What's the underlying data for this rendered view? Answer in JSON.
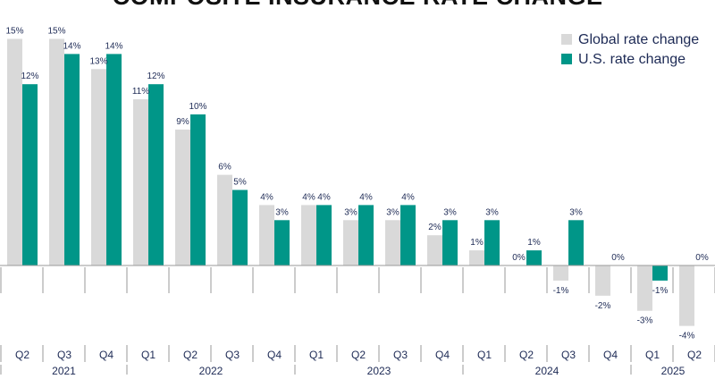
{
  "colors": {
    "global": "#d9d9d9",
    "us": "#009688",
    "text": "#1d2a55",
    "axis": "#9a9a9a"
  },
  "chart_data": {
    "type": "bar",
    "title": "COMPOSITE INSURANCE RATE CHANGE",
    "xlabel": "",
    "ylabel": "",
    "ylim": [
      -5,
      16
    ],
    "grid": false,
    "legend_position": "top-right",
    "categories": [
      "Q2",
      "Q3",
      "Q4",
      "Q1",
      "Q2",
      "Q3",
      "Q4",
      "Q1",
      "Q2",
      "Q3",
      "Q4",
      "Q1",
      "Q2",
      "Q3",
      "Q4",
      "Q1",
      "Q2"
    ],
    "years": [
      {
        "label": "2021",
        "start": 0,
        "count": 3
      },
      {
        "label": "2022",
        "start": 3,
        "count": 4
      },
      {
        "label": "2023",
        "start": 7,
        "count": 4
      },
      {
        "label": "2024",
        "start": 11,
        "count": 4
      },
      {
        "label": "2025",
        "start": 15,
        "count": 2
      }
    ],
    "series": [
      {
        "name": "Global rate change",
        "key": "global",
        "values": [
          15,
          15,
          13,
          11,
          9,
          6,
          4,
          4,
          3,
          3,
          2,
          1,
          0,
          -1,
          -2,
          -3,
          -4
        ],
        "labels": [
          "15%",
          "15%",
          "13%",
          "11%",
          "9%",
          "6%",
          "4%",
          "4%",
          "3%",
          "3%",
          "2%",
          "1%",
          "0%",
          "-1%",
          "-2%",
          "-3%",
          "-4%"
        ]
      },
      {
        "name": "U.S. rate change",
        "key": "us",
        "values": [
          12,
          14,
          14,
          12,
          10,
          5,
          3,
          4,
          4,
          4,
          3,
          3,
          1,
          3,
          0,
          -1,
          0
        ],
        "labels": [
          "12%",
          "14%",
          "14%",
          "12%",
          "10%",
          "5%",
          "3%",
          "4%",
          "4%",
          "4%",
          "3%",
          "3%",
          "1%",
          "3%",
          "0%",
          "-1%",
          "0%"
        ]
      }
    ]
  }
}
